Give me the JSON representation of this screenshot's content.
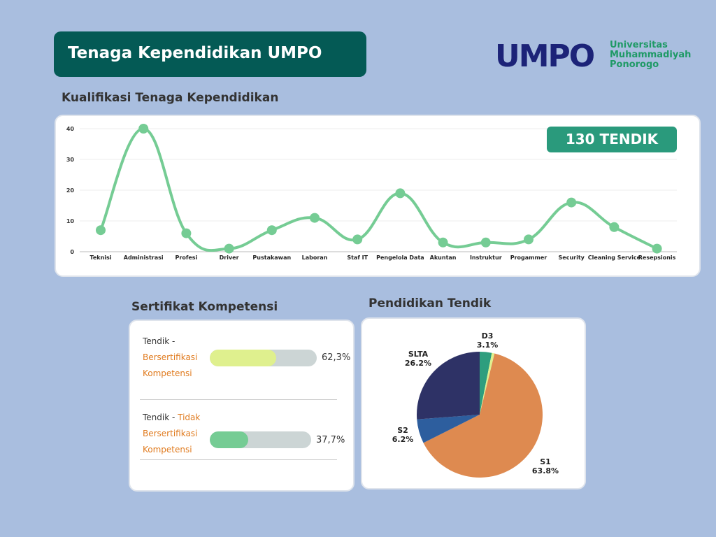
{
  "header": {
    "title": "Tenaga Kependidikan UMPO"
  },
  "logo": {
    "mark": "UMPO",
    "line1": "Universitas",
    "line2": "Muhammadiyah",
    "line3": "Ponorogo"
  },
  "sections": {
    "kualifikasi": "Kualifikasi Tenaga Kependidikan",
    "sertifikat": "Sertifikat Kompetensi",
    "pendidikan": "Pendidikan Tendik"
  },
  "badge": {
    "text": "130 TENDIK",
    "color": "#2a9a7c"
  },
  "chart_data": [
    {
      "type": "line",
      "categories": [
        "Teknisi",
        "Administrasi",
        "Profesi",
        "Driver",
        "Pustakawan",
        "Laboran",
        "Staf IT",
        "Pengelola Data",
        "Akuntan",
        "Instruktur",
        "Progammer",
        "Security",
        "Cleaning Service",
        "Resepsionis"
      ],
      "values": [
        7,
        40,
        6,
        1,
        7,
        11,
        4,
        19,
        3,
        3,
        4,
        16,
        8,
        1
      ],
      "ylim": [
        0,
        40
      ],
      "yticks": [
        0,
        10,
        20,
        30,
        40
      ],
      "grid": true,
      "smooth": true,
      "color": "#75cc94"
    },
    {
      "type": "bar",
      "orientation": "horizontal",
      "categories": [
        {
          "line1": "Tendik -",
          "line2": "Bersertifikasi",
          "line3": "Kompetensi"
        },
        {
          "line1": "Tendik - ",
          "line1_hl": "Tidak",
          "line2": "Bersertifikasi",
          "line3": "Kompetensi"
        }
      ],
      "values": [
        62.3,
        37.7
      ],
      "value_labels": [
        "62,3%",
        "37,7%"
      ],
      "colors": [
        "#dff08e",
        "#75cc94"
      ],
      "xlim": [
        0,
        100
      ]
    },
    {
      "type": "pie",
      "slices": [
        {
          "label": "D3",
          "value": 3.1,
          "value_label": "3.1%",
          "color": "#2e9e7e"
        },
        {
          "label": "",
          "value": 0.7,
          "value_label": "",
          "color": "#dff08e"
        },
        {
          "label": "S1",
          "value": 63.8,
          "value_label": "63.8%",
          "color": "#de8a50"
        },
        {
          "label": "S2",
          "value": 6.2,
          "value_label": "6.2%",
          "color": "#2d5e9e"
        },
        {
          "label": "SLTA",
          "value": 26.2,
          "value_label": "26.2%",
          "color": "#2e3266"
        }
      ]
    }
  ]
}
